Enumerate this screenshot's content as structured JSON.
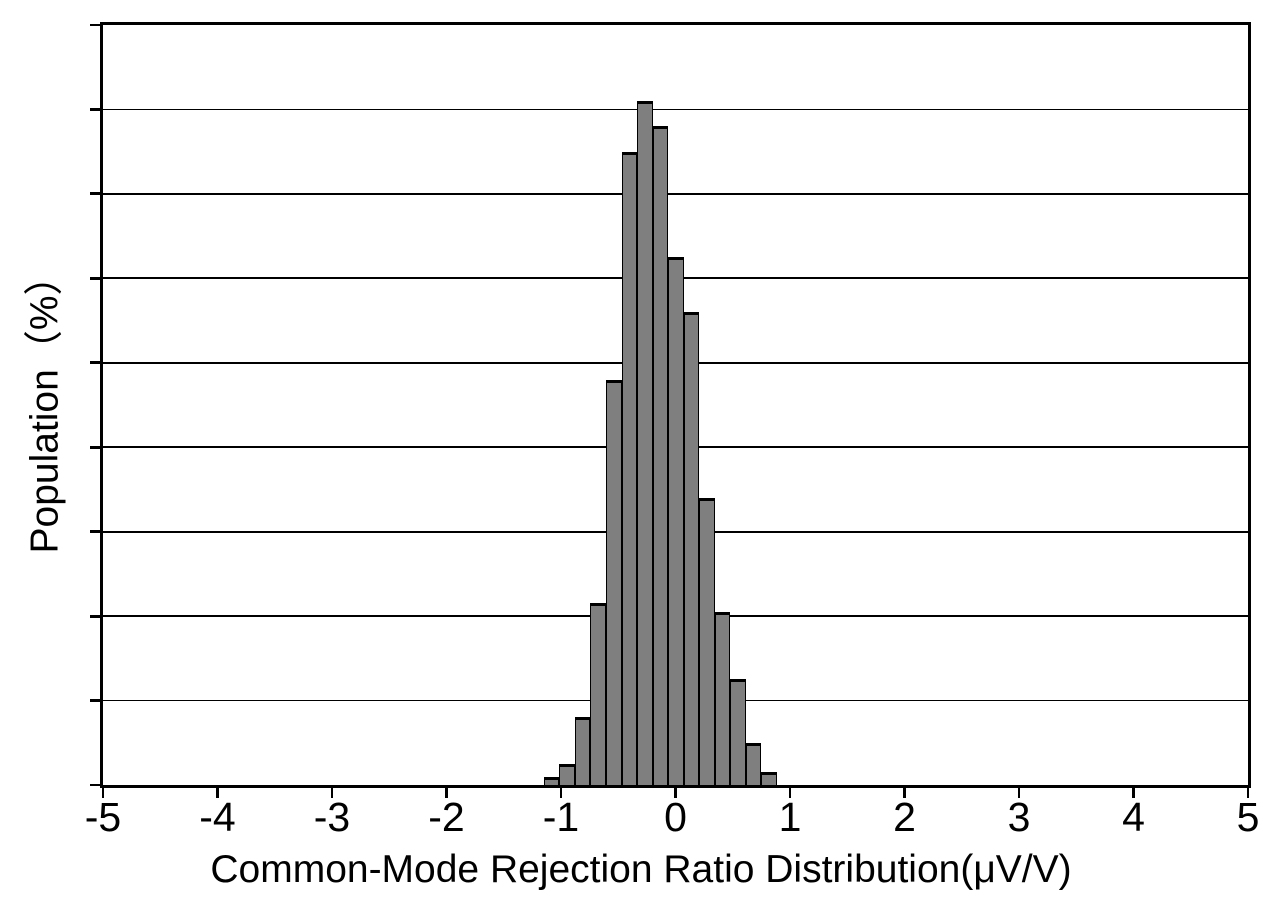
{
  "chart_data": {
    "type": "histogram",
    "title": "",
    "xlabel": "Common-Mode Rejection Ratio Distribution(μV/V)",
    "ylabel": "Population（%）",
    "x_axis": {
      "min": -5,
      "max": 5,
      "tick_step": 1,
      "tick_labels": [
        "-5",
        "-4",
        "-3",
        "-2",
        "-1",
        "0",
        "1",
        "2",
        "3",
        "4",
        "5"
      ]
    },
    "y_axis": {
      "min": 0,
      "max": 18,
      "gridline_step": 2,
      "gridline_intervals": 9,
      "numeric_labels_shown": false,
      "unit": "%"
    },
    "bins": {
      "start": -1.15,
      "width": 0.1357,
      "count": 15
    },
    "series": [
      {
        "name": "Population",
        "values_pct": [
          0.2,
          0.5,
          1.6,
          4.3,
          9.6,
          15.0,
          16.2,
          15.6,
          12.5,
          11.2,
          6.8,
          4.1,
          2.5,
          1.0,
          0.3
        ]
      }
    ],
    "legend_shown": false,
    "grid": "horizontal",
    "colors": {
      "bar_fill": "#7f7f7f",
      "bar_border": "#000000",
      "axis": "#000000",
      "gridline": "#000000",
      "text": "#000000",
      "background": "#ffffff"
    }
  }
}
